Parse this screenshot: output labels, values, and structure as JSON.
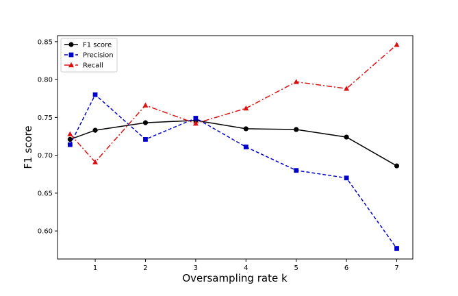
{
  "chart_data": {
    "type": "line",
    "title": "",
    "xlabel": "Oversampling rate k",
    "ylabel": "F1 score",
    "xlim": [
      0.25,
      7.32
    ],
    "ylim": [
      0.563,
      0.858
    ],
    "xticks": [
      1,
      2,
      3,
      4,
      5,
      6,
      7
    ],
    "yticks": [
      0.6,
      0.65,
      0.7,
      0.75,
      0.8,
      0.85
    ],
    "grid": false,
    "legend_position": "top-left",
    "x": [
      0.5,
      1,
      2,
      3,
      4,
      5,
      6,
      7
    ],
    "series": [
      {
        "name": "F1 score",
        "values": [
          0.721,
          0.733,
          0.743,
          0.746,
          0.735,
          0.734,
          0.724,
          0.686
        ],
        "color": "#000000",
        "line_style": "solid",
        "marker": "circle"
      },
      {
        "name": "Precision",
        "values": [
          0.714,
          0.78,
          0.721,
          0.749,
          0.711,
          0.68,
          0.67,
          0.577
        ],
        "color": "#0000cc",
        "line_style": "dashed",
        "marker": "square"
      },
      {
        "name": "Recall",
        "values": [
          0.728,
          0.691,
          0.766,
          0.742,
          0.762,
          0.797,
          0.788,
          0.846
        ],
        "color": "#dd1111",
        "line_style": "dashdot",
        "marker": "triangle"
      }
    ]
  }
}
